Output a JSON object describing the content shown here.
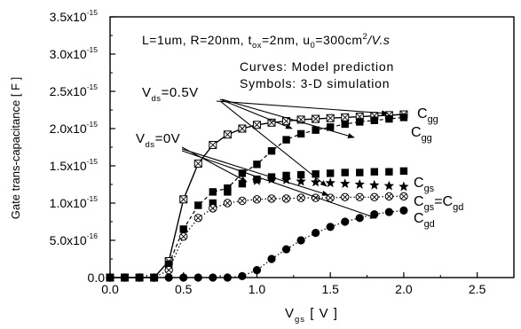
{
  "chart_data": {
    "type": "scatter",
    "xlim": [
      0.0,
      2.75
    ],
    "ylim": [
      0.0,
      3.5e-15
    ],
    "x_ticks": [
      "0.0",
      "0.5",
      "1.0",
      "1.5",
      "2.0",
      "2.5"
    ],
    "x_tick_values": [
      0.0,
      0.5,
      1.0,
      1.5,
      2.0,
      2.5
    ],
    "y_ticks": [
      {
        "value": 0.0,
        "mant": "0.0",
        "exp": ""
      },
      {
        "value": 5e-16,
        "mant": "5.0x10",
        "exp": "-16"
      },
      {
        "value": 1e-15,
        "mant": "1.0x10",
        "exp": "-15"
      },
      {
        "value": 1.5e-15,
        "mant": "1.5x10",
        "exp": "-15"
      },
      {
        "value": 2e-15,
        "mant": "2.0x10",
        "exp": "-15"
      },
      {
        "value": 2.5e-15,
        "mant": "2.5x10",
        "exp": "-15"
      },
      {
        "value": 3e-15,
        "mant": "3.0x10",
        "exp": "-15"
      },
      {
        "value": 3.5e-15,
        "mant": "3.5x10",
        "exp": "-15"
      }
    ],
    "ylabel": "Gate trans-capacitance [ F ]",
    "xlabel": {
      "main": "V",
      "sub": "gs",
      "unit": "  [ V ]"
    },
    "parameters_line": {
      "p1": "L=1um, R=20nm, t",
      "p1_sub": "ox",
      "p2": "=2nm, u",
      "p2_sub": "0",
      "p3": "=300cm",
      "p3_sup": "2",
      "p4": "/V.s"
    },
    "legend_lines": [
      "Curves: Model prediction",
      "Symbols: 3-D simulation"
    ],
    "vds_labels": [
      {
        "pre": "V",
        "sub": "ds",
        "post": "=0.5V"
      },
      {
        "pre": "V",
        "sub": "ds",
        "post": "=0V"
      }
    ],
    "curve_labels": [
      {
        "main": "C",
        "sub": "gg",
        "tail": "",
        "tail_sub": ""
      },
      {
        "main": "C",
        "sub": "gg",
        "tail": "",
        "tail_sub": ""
      },
      {
        "main": "C",
        "sub": "gs",
        "tail": "",
        "tail_sub": ""
      },
      {
        "main": "C",
        "sub": "gs",
        "tail": "=C",
        "tail_sub": "gd"
      },
      {
        "main": "C",
        "sub": "gd",
        "tail": "",
        "tail_sub": ""
      }
    ],
    "series": [
      {
        "marker": "boxx",
        "style": "solid",
        "x": [
          0.0,
          0.1,
          0.2,
          0.3,
          0.4,
          0.5,
          0.6,
          0.7,
          0.8,
          0.9,
          1.0,
          1.1,
          1.2,
          1.3,
          1.4,
          1.5,
          1.6,
          1.7,
          1.8,
          1.9,
          2.0
        ],
        "y": [
          0,
          0,
          0,
          0,
          2.2e-16,
          1.05e-15,
          1.53e-15,
          1.78e-15,
          1.92e-15,
          2e-15,
          2.05e-15,
          2.08e-15,
          2.1e-15,
          2.12e-15,
          2.13e-15,
          2.14e-15,
          2.15e-15,
          2.16e-15,
          2.17e-15,
          2.18e-15,
          2.19e-15
        ]
      },
      {
        "marker": "square_filled",
        "style": "dashed",
        "x": [
          0.4,
          0.5,
          0.6,
          0.7,
          0.8,
          0.9,
          1.0,
          1.1,
          1.2,
          1.3,
          1.4,
          1.5,
          1.6,
          1.7,
          1.8,
          1.9,
          2.0
        ],
        "y": [
          1.8e-16,
          6.5e-16,
          9.7e-16,
          1.15e-15,
          1.2e-15,
          1.4e-15,
          1.52e-15,
          1.7e-15,
          1.85e-15,
          1.93e-15,
          1.98e-15,
          2.02e-15,
          2.06e-15,
          2.09e-15,
          2.11e-15,
          2.13e-15,
          2.15e-15
        ]
      },
      {
        "marker": "square_filled",
        "style": "none",
        "x": [
          0.7,
          0.8,
          0.9,
          1.0,
          1.1,
          1.2,
          1.3,
          1.4,
          1.5,
          1.6,
          1.7,
          1.8,
          1.9,
          2.0
        ],
        "y": [
          1e-15,
          1.15e-15,
          1.26e-15,
          1.32e-15,
          1.35e-15,
          1.37e-15,
          1.38e-15,
          1.39e-15,
          1.4e-15,
          1.41e-15,
          1.41e-15,
          1.42e-15,
          1.42e-15,
          1.43e-15
        ]
      },
      {
        "marker": "star",
        "style": "none",
        "x": [
          1.0,
          1.1,
          1.2,
          1.3,
          1.4,
          1.5,
          1.6,
          1.7,
          1.8,
          1.9,
          2.0
        ],
        "y": [
          1.3e-15,
          1.32e-15,
          1.31e-15,
          1.29e-15,
          1.28e-15,
          1.27e-15,
          1.26e-15,
          1.25e-15,
          1.24e-15,
          1.23e-15,
          1.22e-15
        ]
      },
      {
        "marker": "circle_x",
        "style": "dotted",
        "x": [
          0.0,
          0.1,
          0.2,
          0.3,
          0.4,
          0.5,
          0.6,
          0.7,
          0.8,
          0.9,
          1.0,
          1.1,
          1.2,
          1.3,
          1.4,
          1.5,
          1.6,
          1.7,
          1.8,
          1.9,
          2.0
        ],
        "y": [
          0,
          0,
          0,
          0,
          1e-16,
          5.5e-16,
          8e-16,
          9.3e-16,
          1e-15,
          1.03e-15,
          1.05e-15,
          1.06e-15,
          1.06e-15,
          1.07e-15,
          1.07e-15,
          1.07e-15,
          1.08e-15,
          1.08e-15,
          1.08e-15,
          1.09e-15,
          1.09e-15
        ]
      },
      {
        "marker": "circle_filled",
        "style": "dotted",
        "x": [
          0.0,
          0.1,
          0.2,
          0.3,
          0.4,
          0.5,
          0.6,
          0.7,
          0.8,
          0.9,
          1.0,
          1.1,
          1.2,
          1.3,
          1.4,
          1.5,
          1.6,
          1.7,
          1.8,
          1.9,
          2.0
        ],
        "y": [
          0,
          0,
          0,
          0,
          0,
          0,
          0,
          0,
          0,
          2e-17,
          1e-16,
          2.5e-16,
          3.8e-16,
          5e-16,
          6e-16,
          6.8e-16,
          7.5e-16,
          8e-16,
          8.5e-16,
          8.8e-16,
          9e-16
        ]
      }
    ]
  }
}
